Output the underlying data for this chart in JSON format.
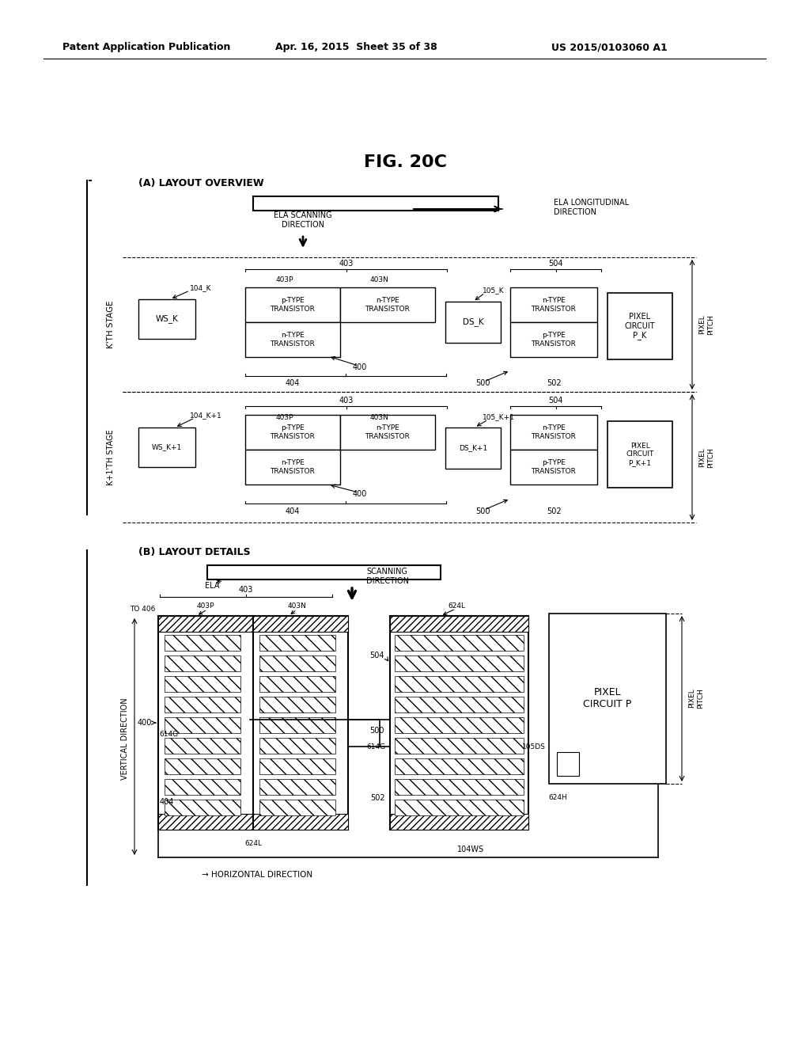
{
  "header_left": "Patent Application Publication",
  "header_mid": "Apr. 16, 2015  Sheet 35 of 38",
  "header_right": "US 2015/0103060 A1",
  "fig_title": "FIG. 20C",
  "section_a_label": "(A) LAYOUT OVERVIEW",
  "section_b_label": "(B) LAYOUT DETAILS",
  "bg_color": "#ffffff"
}
